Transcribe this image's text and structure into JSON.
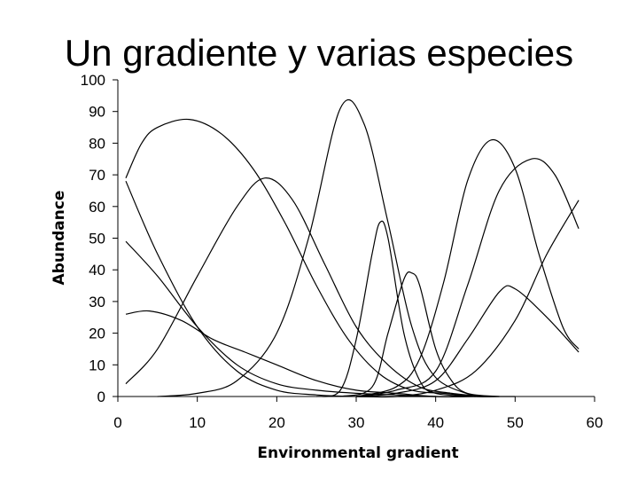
{
  "slide": {
    "title": "Un gradiente y varias especies"
  },
  "chart_data": {
    "type": "line",
    "title": "",
    "xlabel": "Environmental gradient",
    "ylabel": "Abundance",
    "xlim": [
      0,
      60
    ],
    "ylim": [
      0,
      100
    ],
    "x_ticks": [
      "0",
      "10",
      "20",
      "30",
      "40",
      "50",
      "60"
    ],
    "y_ticks": [
      "0",
      "10",
      "20",
      "30",
      "40",
      "50",
      "60",
      "70",
      "80",
      "90",
      "100"
    ],
    "grid": false,
    "legend": "none",
    "line_color": "#000000",
    "series": [
      {
        "x": [
          1,
          5,
          10,
          15,
          20,
          25,
          30,
          35,
          40
        ],
        "values": [
          68,
          45,
          22,
          8,
          2,
          0.5,
          0,
          0,
          0
        ]
      },
      {
        "x": [
          1,
          5,
          10,
          15,
          20,
          25,
          30,
          35,
          40,
          45,
          50
        ],
        "values": [
          49,
          38,
          22,
          10,
          4,
          2,
          1,
          0.5,
          0,
          0,
          0
        ]
      },
      {
        "x": [
          1,
          4,
          8,
          12,
          16,
          20,
          25,
          30,
          35,
          40,
          45
        ],
        "values": [
          26,
          27,
          24,
          18,
          14,
          10,
          5,
          2,
          1,
          0,
          0
        ]
      },
      {
        "x": [
          1,
          3,
          5,
          9,
          13,
          17,
          21,
          25,
          29,
          33,
          37,
          41,
          45,
          48
        ],
        "values": [
          69,
          80,
          85,
          87.5,
          83,
          72,
          55,
          35,
          18,
          7,
          2,
          1,
          0,
          0
        ]
      },
      {
        "x": [
          1,
          5,
          10,
          15,
          18.5,
          22,
          26,
          30,
          34,
          38,
          42,
          46
        ],
        "values": [
          4,
          15,
          38,
          60,
          69,
          62,
          42,
          22,
          10,
          3,
          1,
          0
        ]
      },
      {
        "x": [
          5,
          10,
          15,
          20,
          24,
          28,
          31,
          34,
          37,
          40,
          45
        ],
        "values": [
          0,
          1,
          5,
          20,
          50,
          91,
          86,
          55,
          22,
          6,
          0
        ]
      },
      {
        "x": [
          25,
          28,
          30,
          32,
          33,
          34,
          36,
          38,
          40,
          45
        ],
        "values": [
          0,
          2,
          18,
          45,
          55,
          50,
          20,
          5,
          1,
          0
        ]
      },
      {
        "x": [
          28,
          32,
          34,
          36,
          37,
          38,
          40,
          42,
          44,
          48
        ],
        "values": [
          0,
          3,
          20,
          37,
          39,
          35,
          15,
          5,
          1,
          0
        ]
      },
      {
        "x": [
          30,
          35,
          38,
          41,
          44,
          47,
          50,
          53,
          56,
          58
        ],
        "values": [
          0,
          3,
          12,
          36,
          68,
          81,
          72,
          45,
          22,
          15
        ]
      },
      {
        "x": [
          30,
          35,
          40,
          44,
          48,
          52,
          55,
          58
        ],
        "values": [
          0,
          2,
          8,
          35,
          65,
          75,
          70,
          53
        ]
      },
      {
        "x": [
          30,
          35,
          40,
          44,
          48,
          50,
          54,
          58
        ],
        "values": [
          0,
          1,
          5,
          18,
          33,
          34,
          25,
          14
        ]
      },
      {
        "x": [
          30,
          35,
          40,
          45,
          50,
          54,
          58
        ],
        "values": [
          0,
          0,
          2,
          8,
          24,
          45,
          62
        ]
      }
    ]
  }
}
